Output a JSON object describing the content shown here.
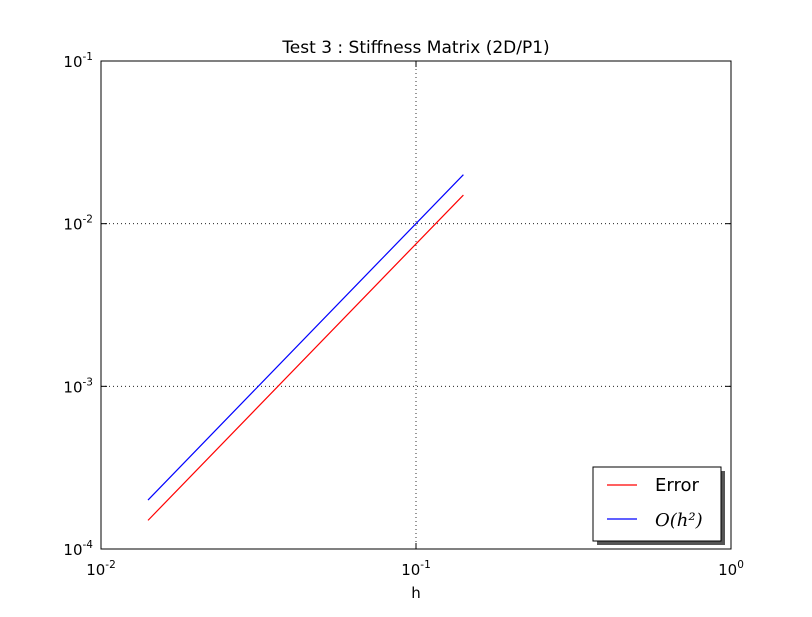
{
  "chart_data": {
    "type": "line",
    "title": "Test 3 : Stiffness Matrix (2D/P1)",
    "xlabel": "h",
    "ylabel": "",
    "xscale": "log",
    "yscale": "log",
    "xlim": [
      0.01,
      1
    ],
    "ylim": [
      0.0001,
      0.1
    ],
    "grid": true,
    "grid_style": "dotted",
    "legend_position": "bottom-right",
    "x_ticks": [
      {
        "value": 0.01,
        "base": "10",
        "exponent": "-2"
      },
      {
        "value": 0.1,
        "base": "10",
        "exponent": "-1"
      },
      {
        "value": 1,
        "base": "10",
        "exponent": "0"
      }
    ],
    "y_ticks": [
      {
        "value": 0.0001,
        "base": "10",
        "exponent": "-4"
      },
      {
        "value": 0.001,
        "base": "10",
        "exponent": "-3"
      },
      {
        "value": 0.01,
        "base": "10",
        "exponent": "-2"
      },
      {
        "value": 0.1,
        "base": "10",
        "exponent": "-1"
      }
    ],
    "series": [
      {
        "name": "Error",
        "color": "#ff0000",
        "x": [
          0.0141,
          0.1414
        ],
        "y": [
          0.00015,
          0.015
        ]
      },
      {
        "name": "O(h²)",
        "color": "#0000ff",
        "x": [
          0.0141,
          0.1414
        ],
        "y": [
          0.0002,
          0.02
        ]
      }
    ]
  }
}
